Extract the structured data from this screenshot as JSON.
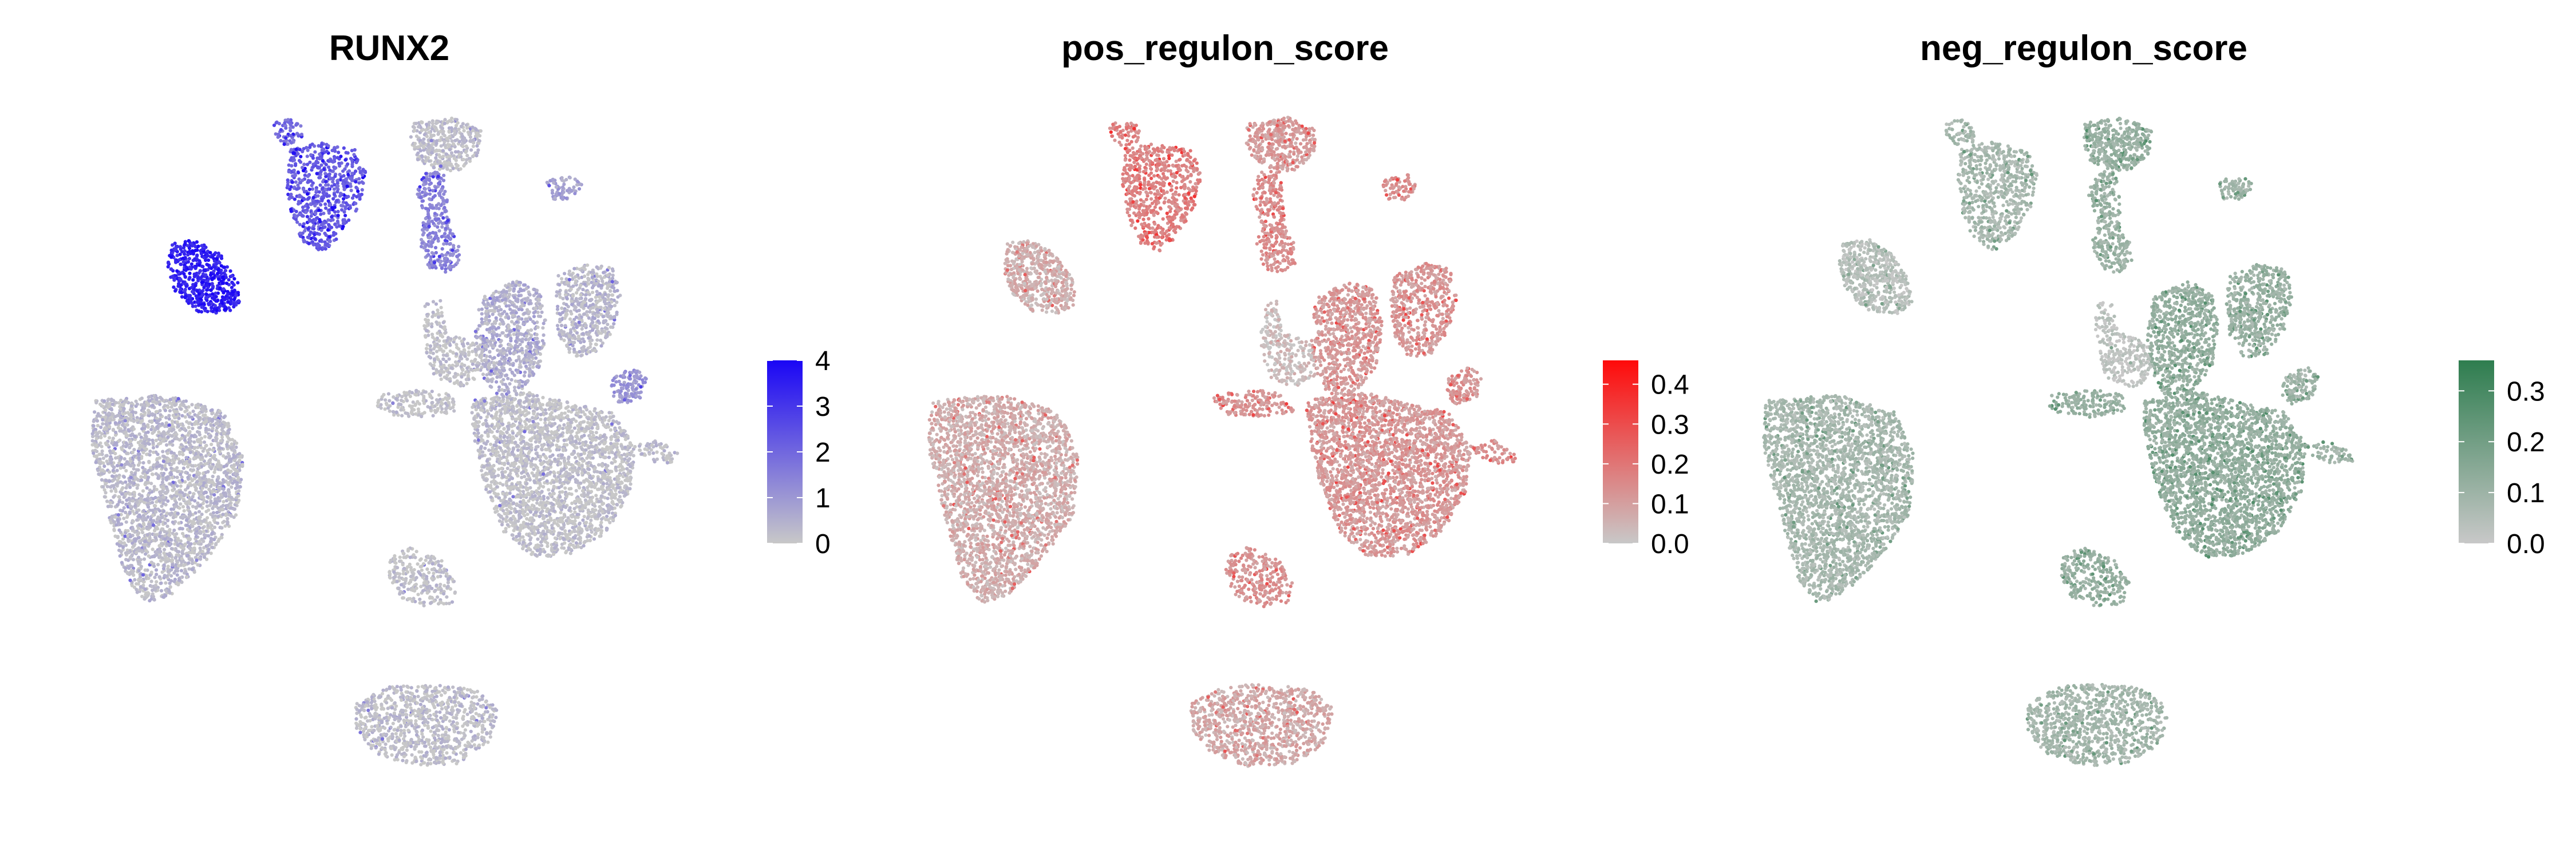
{
  "chart_data": [
    {
      "type": "scatter",
      "title": "RUNX2",
      "xlabel": "",
      "ylabel": "",
      "axes": "none",
      "grid": false,
      "legend": {
        "kind": "colorbar",
        "placement": "right",
        "ticks": [
          "0",
          "1",
          "2",
          "3",
          "4"
        ],
        "range": [
          0,
          4
        ],
        "colors": [
          "#c8c8c8",
          "#1a06f5"
        ]
      },
      "colors": {
        "base": "#c8c8c8",
        "high": "#1a06f5"
      },
      "clusters": [
        {
          "name": "far-left",
          "level": 0.06
        },
        {
          "name": "left-small",
          "level": 0.85
        },
        {
          "name": "top-left",
          "level": 0.55
        },
        {
          "name": "top-left-tiny",
          "level": 0.45
        },
        {
          "name": "top-center",
          "level": 0.04
        },
        {
          "name": "top-arm",
          "level": 0.35
        },
        {
          "name": "top-right-tiny",
          "level": 0.2
        },
        {
          "name": "center-main",
          "level": 0.03
        },
        {
          "name": "center-upper",
          "level": 0.12
        },
        {
          "name": "center-right",
          "level": 0.08
        },
        {
          "name": "center-stripe",
          "level": 0.02
        },
        {
          "name": "right-small",
          "level": 0.25
        },
        {
          "name": "right-far",
          "level": 0.05
        },
        {
          "name": "left-arm",
          "level": 0.02
        },
        {
          "name": "bottom-small",
          "level": 0.03
        },
        {
          "name": "bottom-center",
          "level": 0.04
        }
      ]
    },
    {
      "type": "scatter",
      "title": "pos_regulon_score",
      "xlabel": "",
      "ylabel": "",
      "axes": "none",
      "grid": false,
      "legend": {
        "kind": "colorbar",
        "placement": "right",
        "ticks": [
          "0.0",
          "0.1",
          "0.2",
          "0.3",
          "0.4"
        ],
        "range": [
          0,
          0.46
        ],
        "colors": [
          "#c8c8c8",
          "#ff0a0a"
        ]
      },
      "colors": {
        "base": "#c8c8c8",
        "high": "#ff0a0a"
      },
      "clusters": [
        {
          "name": "far-left",
          "level": 0.14
        },
        {
          "name": "left-small",
          "level": 0.13
        },
        {
          "name": "top-left",
          "level": 0.36
        },
        {
          "name": "top-left-tiny",
          "level": 0.36
        },
        {
          "name": "top-center",
          "level": 0.22
        },
        {
          "name": "top-arm",
          "level": 0.3
        },
        {
          "name": "top-right-tiny",
          "level": 0.3
        },
        {
          "name": "center-main",
          "level": 0.24
        },
        {
          "name": "center-upper",
          "level": 0.24
        },
        {
          "name": "center-right",
          "level": 0.26
        },
        {
          "name": "center-stripe",
          "level": 0.05
        },
        {
          "name": "right-small",
          "level": 0.27
        },
        {
          "name": "right-far",
          "level": 0.28
        },
        {
          "name": "left-arm",
          "level": 0.28
        },
        {
          "name": "bottom-small",
          "level": 0.27
        },
        {
          "name": "bottom-center",
          "level": 0.16
        }
      ]
    },
    {
      "type": "scatter",
      "title": "neg_regulon_score",
      "xlabel": "",
      "ylabel": "",
      "axes": "none",
      "grid": false,
      "legend": {
        "kind": "colorbar",
        "placement": "right",
        "ticks": [
          "0.0",
          "0.1",
          "0.2",
          "0.3"
        ],
        "range": [
          0,
          0.36
        ],
        "colors": [
          "#c8c8c8",
          "#2e7d4f"
        ]
      },
      "colors": {
        "base": "#c8c8c8",
        "high": "#2e7d4f"
      },
      "clusters": [
        {
          "name": "far-left",
          "level": 0.2
        },
        {
          "name": "left-small",
          "level": 0.1
        },
        {
          "name": "top-left",
          "level": 0.2
        },
        {
          "name": "top-left-tiny",
          "level": 0.2
        },
        {
          "name": "top-center",
          "level": 0.3
        },
        {
          "name": "top-arm",
          "level": 0.28
        },
        {
          "name": "top-right-tiny",
          "level": 0.25
        },
        {
          "name": "center-main",
          "level": 0.33
        },
        {
          "name": "center-upper",
          "level": 0.32
        },
        {
          "name": "center-right",
          "level": 0.28
        },
        {
          "name": "center-stripe",
          "level": 0.05
        },
        {
          "name": "right-small",
          "level": 0.25
        },
        {
          "name": "right-far",
          "level": 0.25
        },
        {
          "name": "left-arm",
          "level": 0.3
        },
        {
          "name": "bottom-small",
          "level": 0.3
        },
        {
          "name": "bottom-center",
          "level": 0.22
        }
      ]
    }
  ]
}
